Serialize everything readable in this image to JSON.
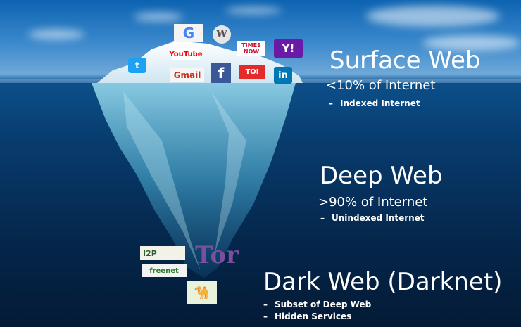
{
  "colors": {
    "sky": "#3a88cc",
    "ocean_deep": "#031a35",
    "ice": "#dfeff8",
    "text": "#ffffff"
  },
  "surface": {
    "title": "Surface Web",
    "share": "<10% of Internet",
    "note": "Indexed Internet",
    "logos": {
      "google": "G",
      "youtube": "YouTube",
      "times_now_top": "TIMES",
      "times_now_bottom": "NOW",
      "yahoo": "Y!",
      "gmail": "Gmail",
      "facebook": "f",
      "toi": "TOI",
      "linkedin": "in"
    }
  },
  "deep": {
    "title": "Deep Web",
    "share": ">90% of Internet",
    "note": "Unindexed Internet"
  },
  "dark": {
    "title": "Dark Web (Darknet)",
    "items": [
      "Subset of Deep Web",
      "Hidden Services"
    ],
    "logos": {
      "i2p": "I2P",
      "freenet": "freenet",
      "tor": "Tor"
    }
  },
  "icons": [
    "twitter-icon",
    "wikipedia-icon",
    "camel-icon",
    "onion-icon"
  ]
}
